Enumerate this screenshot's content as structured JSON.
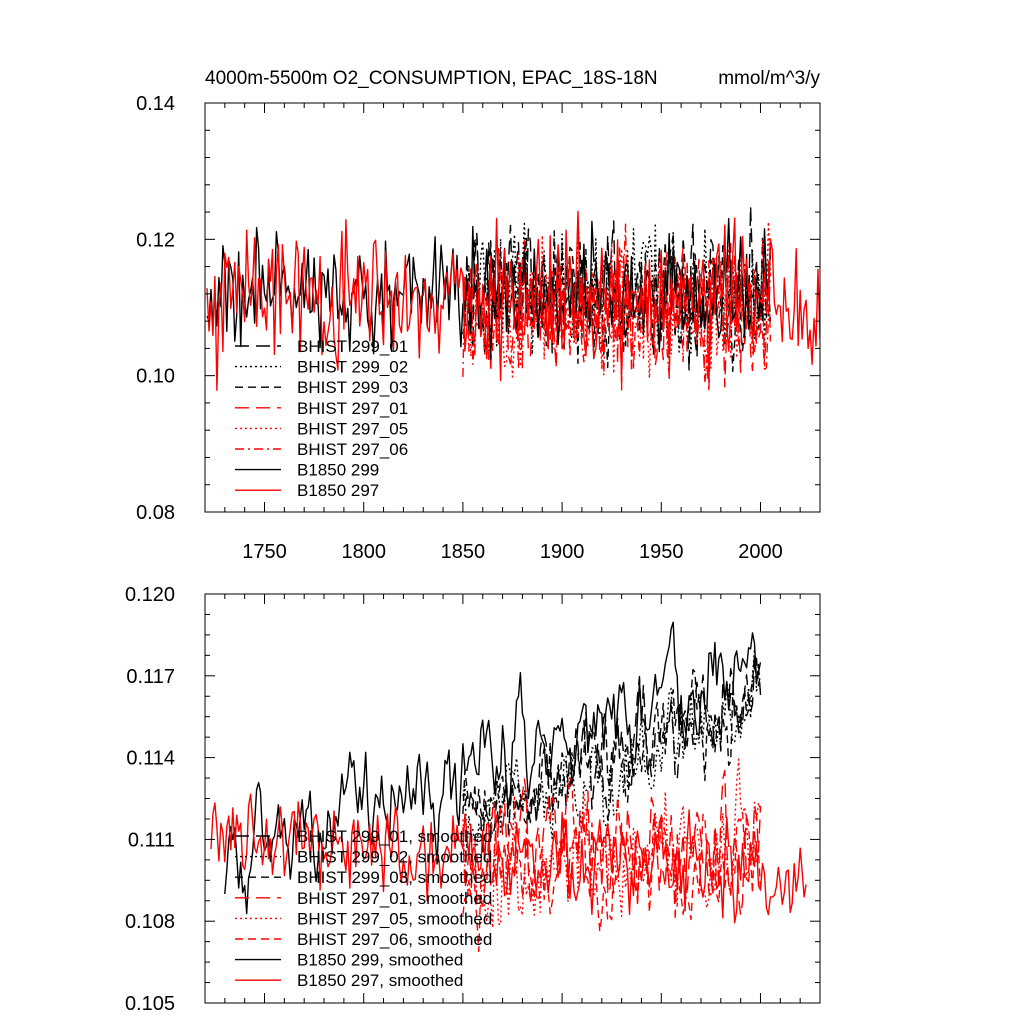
{
  "title": {
    "left": "4000m-5500m O2_CONSUMPTION, EPAC_18S-18N",
    "right": "mmol/m^3/y"
  },
  "colors": {
    "black": "#000000",
    "red": "#ff0000"
  },
  "chart_data": [
    {
      "type": "line",
      "panel": "top",
      "xlim": [
        1720,
        2030
      ],
      "ylim": [
        0.08,
        0.14
      ],
      "x_ticks": [
        1750,
        1800,
        1850,
        1900,
        1950,
        2000
      ],
      "x_tick_labels": [
        "1750",
        "1800",
        "1850",
        "1900",
        "1950",
        "2000"
      ],
      "y_ticks": [
        0.08,
        0.1,
        0.12,
        0.14
      ],
      "y_tick_labels": [
        "0.08",
        "0.10",
        "0.12",
        "0.14"
      ],
      "grid": false,
      "legend_position": "lower-left",
      "series": [
        {
          "name": "BHIST 299_01",
          "color": "black",
          "dash": "long-dash",
          "x_range": [
            1850,
            2005
          ],
          "mean": 0.112,
          "spread": 0.009,
          "seed": 11
        },
        {
          "name": "BHIST 299_02",
          "color": "black",
          "dash": "dot",
          "x_range": [
            1850,
            2005
          ],
          "mean": 0.112,
          "spread": 0.009,
          "seed": 12
        },
        {
          "name": "BHIST 299_03",
          "color": "black",
          "dash": "dash",
          "x_range": [
            1850,
            2005
          ],
          "mean": 0.112,
          "spread": 0.009,
          "seed": 13
        },
        {
          "name": "BHIST 297_01",
          "color": "red",
          "dash": "long-dash",
          "x_range": [
            1850,
            2005
          ],
          "mean": 0.109,
          "spread": 0.009,
          "seed": 14
        },
        {
          "name": "BHIST 297_05",
          "color": "red",
          "dash": "dot",
          "x_range": [
            1850,
            2005
          ],
          "mean": 0.109,
          "spread": 0.009,
          "seed": 15
        },
        {
          "name": "BHIST 297_06",
          "color": "red",
          "dash": "dash-dot",
          "x_range": [
            1850,
            2005
          ],
          "mean": 0.109,
          "spread": 0.009,
          "seed": 16
        },
        {
          "name": "B1850 299",
          "color": "black",
          "dash": "solid",
          "x_range": [
            1721,
            2005
          ],
          "mean": 0.112,
          "spread": 0.008,
          "seed": 17
        },
        {
          "name": "B1850 297",
          "color": "red",
          "dash": "solid",
          "x_range": [
            1721,
            2030
          ],
          "mean": 0.111,
          "spread": 0.009,
          "seed": 18
        }
      ]
    },
    {
      "type": "line",
      "panel": "bottom",
      "xlim": [
        1720,
        2030
      ],
      "ylim": [
        0.105,
        0.12
      ],
      "x_ticks": [
        1750,
        1800,
        1850,
        1900,
        1950,
        2000
      ],
      "y_ticks": [
        0.105,
        0.108,
        0.111,
        0.114,
        0.117,
        0.12
      ],
      "y_tick_labels": [
        "0.105",
        "0.108",
        "0.111",
        "0.114",
        "0.117",
        "0.120"
      ],
      "grid": false,
      "legend_position": "lower-left",
      "series": [
        {
          "name": "BHIST 299_01, smoothed",
          "color": "black",
          "dash": "long-dash",
          "x_range": [
            1850,
            2000
          ],
          "start": 0.1115,
          "end": 0.1165,
          "spread": 0.0012,
          "seed": 21
        },
        {
          "name": "BHIST 299_02, smoothed",
          "color": "black",
          "dash": "dot",
          "x_range": [
            1850,
            2000
          ],
          "start": 0.1112,
          "end": 0.1162,
          "spread": 0.0012,
          "seed": 22
        },
        {
          "name": "BHIST 299_03, smoothed",
          "color": "black",
          "dash": "dash",
          "x_range": [
            1850,
            2000
          ],
          "start": 0.1118,
          "end": 0.1158,
          "spread": 0.0012,
          "seed": 23
        },
        {
          "name": "BHIST 297_01, smoothed",
          "color": "red",
          "dash": "long-dash",
          "x_range": [
            1850,
            2000
          ],
          "start": 0.1105,
          "end": 0.1105,
          "spread": 0.0014,
          "seed": 24
        },
        {
          "name": "BHIST 297_05, smoothed",
          "color": "red",
          "dash": "dot",
          "x_range": [
            1850,
            2000
          ],
          "start": 0.11,
          "end": 0.111,
          "spread": 0.0014,
          "seed": 25
        },
        {
          "name": "BHIST 297_06, smoothed",
          "color": "red",
          "dash": "dash",
          "x_range": [
            1850,
            2000
          ],
          "start": 0.1102,
          "end": 0.11,
          "spread": 0.0014,
          "seed": 26
        },
        {
          "name": "B1850 299, smoothed",
          "color": "black",
          "dash": "solid",
          "x_range": [
            1730,
            2000
          ],
          "start": 0.11,
          "end": 0.1175,
          "spread": 0.0012,
          "seed": 27
        },
        {
          "name": "B1850 297, smoothed",
          "color": "red",
          "dash": "solid",
          "x_range": [
            1723,
            2023
          ],
          "start": 0.111,
          "end": 0.11,
          "spread": 0.0013,
          "seed": 28
        }
      ]
    }
  ]
}
